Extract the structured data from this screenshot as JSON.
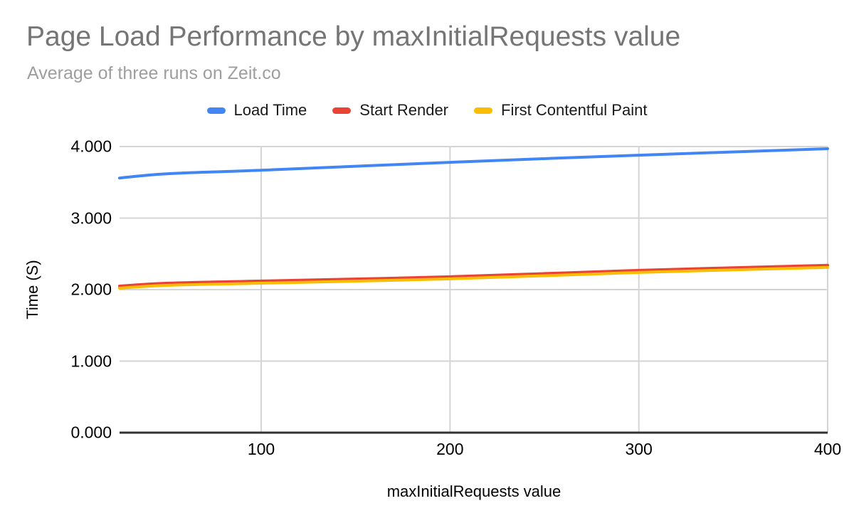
{
  "chart": {
    "title": "Page Load Performance by maxInitialRequests value",
    "subtitle": "Average of three runs on Zeit.co"
  },
  "colors": {
    "background": "#ffffff",
    "title_text": "#757575",
    "subtitle_text": "#9e9e9e",
    "tick_text": "#000000",
    "legend_text": "#1a1a1a",
    "gridline": "#d5d5d5",
    "axis_line": "#333333",
    "series_blue": "#4285F4",
    "series_red": "#EA4335",
    "series_yellow": "#FBBC04"
  },
  "chart_data": {
    "type": "line",
    "title": "Page Load Performance by maxInitialRequests value",
    "subtitle": "Average of three runs on Zeit.co",
    "xlabel": "maxInitialRequests value",
    "ylabel": "Time (S)",
    "xlim": [
      25,
      400
    ],
    "ylim": [
      0,
      4
    ],
    "grid": true,
    "legend_position": "top",
    "x": [
      25,
      50,
      100,
      200,
      300,
      400
    ],
    "series": [
      {
        "name": "Load Time",
        "color": "#4285F4",
        "values": [
          3.56,
          3.62,
          3.67,
          3.78,
          3.88,
          3.97
        ]
      },
      {
        "name": "Start Render",
        "color": "#EA4335",
        "values": [
          2.05,
          2.09,
          2.12,
          2.18,
          2.27,
          2.34
        ]
      },
      {
        "name": "First Contentful Paint",
        "color": "#FBBC04",
        "values": [
          2.02,
          2.06,
          2.09,
          2.15,
          2.24,
          2.31
        ]
      }
    ],
    "x_ticks": [
      100,
      200,
      300,
      400
    ],
    "x_tick_labels": [
      "100",
      "200",
      "300",
      "400"
    ],
    "y_ticks": [
      0,
      1,
      2,
      3,
      4
    ],
    "y_tick_labels": [
      "0.000",
      "1.000",
      "2.000",
      "3.000",
      "4.000"
    ]
  }
}
